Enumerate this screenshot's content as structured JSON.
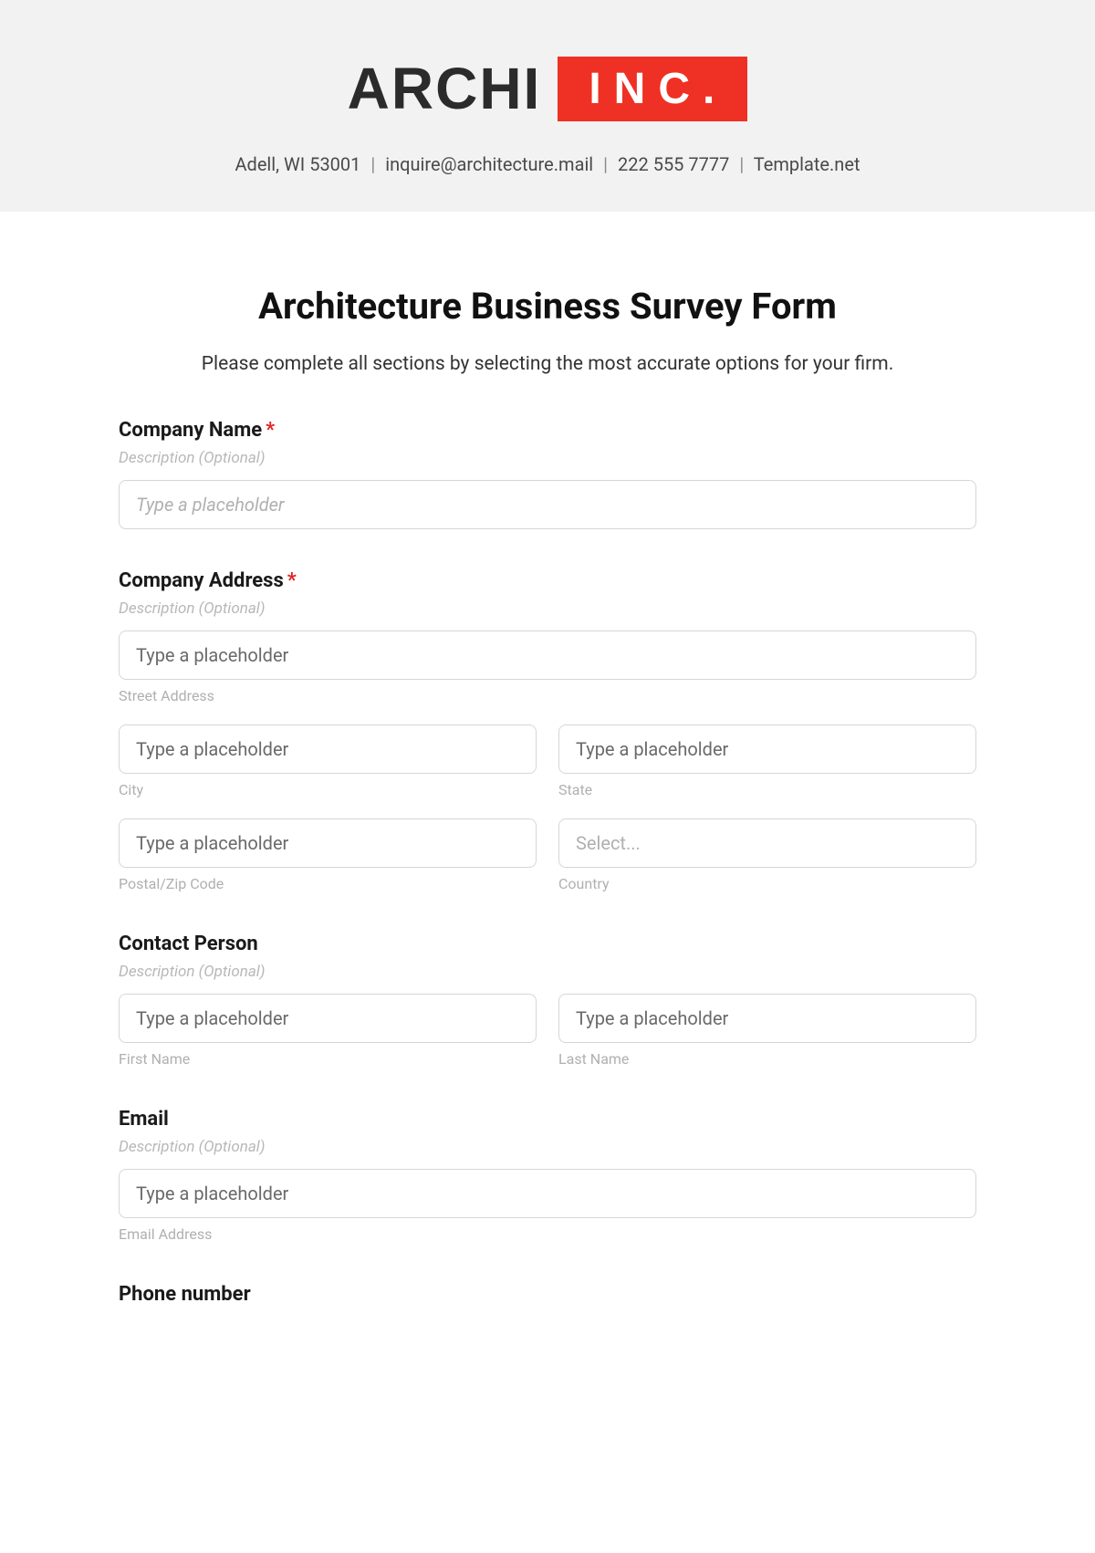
{
  "header": {
    "logo_left": "ARCHI",
    "logo_right": "INC.",
    "contact_parts": [
      "Adell, WI 53001",
      "inquire@architecture.mail",
      "222 555 7777",
      "Template.net"
    ],
    "band_bg": "#f2f2f2",
    "accent_color": "#ee3124",
    "logo_text_color": "#2b2b2b"
  },
  "form": {
    "title": "Architecture Business Survey Form",
    "subtitle": "Please complete all sections by selecting the most accurate options for your firm.",
    "description_optional": "Description (Optional)",
    "placeholder_italic": "Type a placeholder",
    "placeholder_plain": "Type a placeholder",
    "select_placeholder": "Select...",
    "required_color": "#e02424",
    "border_color": "#d6d6d6",
    "fields": {
      "company_name": {
        "label": "Company Name",
        "required": true
      },
      "company_address": {
        "label": "Company Address",
        "required": true,
        "street_sub": "Street Address",
        "city_sub": "City",
        "state_sub": "State",
        "postal_sub": "Postal/Zip Code",
        "country_sub": "Country"
      },
      "contact_person": {
        "label": "Contact Person",
        "first_sub": "First Name",
        "last_sub": "Last Name"
      },
      "email": {
        "label": "Email",
        "sub": "Email Address"
      },
      "phone": {
        "label": "Phone number"
      }
    }
  }
}
